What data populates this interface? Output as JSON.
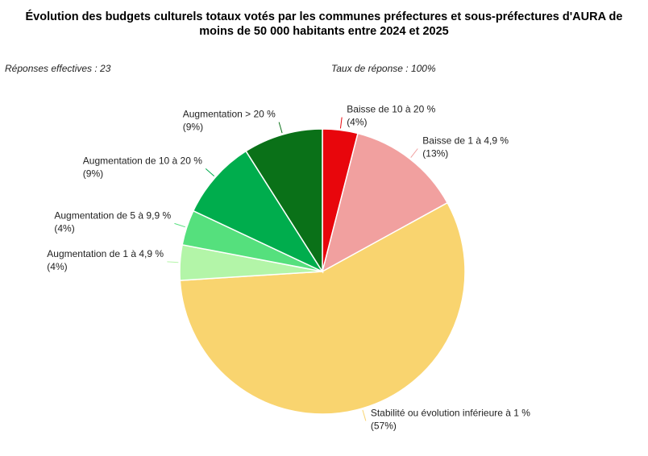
{
  "chart_data": {
    "type": "pie",
    "title": "Évolution des budgets culturels totaux votés par les communes préfectures et sous-préfectures d'AURA de moins de 50 000 habitants entre 2024 et 2025",
    "annotations": [
      "Réponses effectives : 23",
      "Taux de réponse : 100%"
    ],
    "categories": [
      "Baisse de 10 à 20 %",
      "Baisse de 1 à 4,9 %",
      "Stabilité ou évolution inférieure à 1 %",
      "Augmentation de 1 à 4,9 %",
      "Augmentation de 5 à 9,9 %",
      "Augmentation de 10 à 20 %",
      "Augmentation > 20 %"
    ],
    "values": [
      4,
      13,
      57,
      4,
      4,
      9,
      9
    ],
    "value_labels": [
      "(4%)",
      "(13%)",
      "(57%)",
      "(4%)",
      "(4%)",
      "(9%)",
      "(9%)"
    ],
    "colors": [
      "#e8060c",
      "#f1a09f",
      "#f9d46f",
      "#b3f5a8",
      "#55e07d",
      "#00ad4d",
      "#0a7118"
    ]
  }
}
